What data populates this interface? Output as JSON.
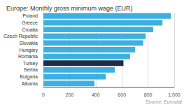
{
  "chart_data": {
    "type": "bar",
    "orientation": "horizontal",
    "title": "Europe: Monthly gross minimum wage (EUR)",
    "annotation": "Source: Eurostat",
    "categories": [
      "Albania",
      "Bulgaria",
      "Serbia",
      "Turkey",
      "Romania",
      "Hungary",
      "Slovakia",
      "Czech Republic",
      "Croatia",
      "Greece",
      "Poland"
    ],
    "values": [
      390,
      477,
      546,
      612,
      663,
      701,
      763,
      782,
      840,
      910,
      976
    ],
    "colors": [
      "#3eb0e0",
      "#3eb0e0",
      "#3eb0e0",
      "#1c2f4a",
      "#3eb0e0",
      "#3eb0e0",
      "#3eb0e0",
      "#3eb0e0",
      "#3eb0e0",
      "#3eb0e0",
      "#3eb0e0"
    ],
    "xlim": [
      0,
      1000
    ],
    "xticks": [
      0,
      200,
      400,
      600,
      800,
      1000
    ],
    "grid": true
  }
}
